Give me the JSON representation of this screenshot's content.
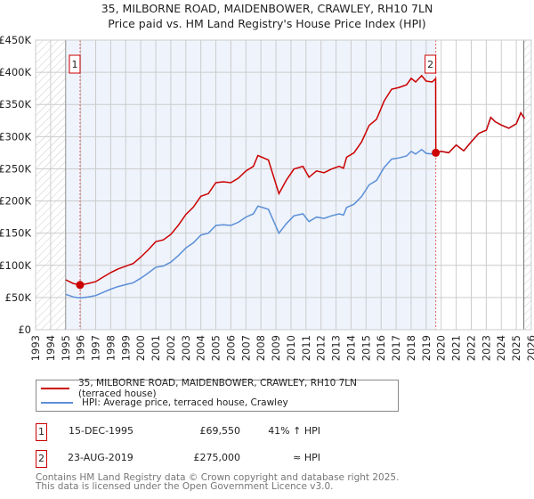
{
  "chart_data": {
    "type": "line",
    "title": "35, MILBORNE ROAD, MAIDENBOWER, CRAWLEY, RH10 7LN",
    "subtitle": "Price paid vs. HM Land Registry's House Price Index (HPI)",
    "xlim": [
      1993,
      2026
    ],
    "ylim": [
      0,
      450000
    ],
    "y_ticks": [
      0,
      50000,
      100000,
      150000,
      200000,
      250000,
      300000,
      350000,
      400000,
      450000
    ],
    "y_tick_labels": [
      "£0",
      "£50K",
      "£100K",
      "£150K",
      "£200K",
      "£250K",
      "£300K",
      "£350K",
      "£400K",
      "£450K"
    ],
    "x_ticks": [
      1993,
      1994,
      1995,
      1996,
      1997,
      1998,
      1999,
      2000,
      2001,
      2002,
      2003,
      2004,
      2005,
      2006,
      2007,
      2008,
      2009,
      2010,
      2011,
      2012,
      2013,
      2014,
      2015,
      2016,
      2017,
      2018,
      2019,
      2020,
      2021,
      2022,
      2023,
      2024,
      2025,
      2026
    ],
    "grid": true,
    "colors": {
      "property": "#cc0000",
      "hpi": "#5b8fd6",
      "shade": "#eef3fc"
    },
    "series": [
      {
        "name": "35, MILBORNE ROAD, MAIDENBOWER, CRAWLEY, RH10 7LN (terraced house)",
        "key": "property",
        "x": [
          1995.0,
          1995.5,
          1995.96,
          1996.5,
          1997.0,
          1997.5,
          1998.0,
          1998.5,
          1999.0,
          1999.5,
          2000.0,
          2000.5,
          2001.0,
          2001.5,
          2002.0,
          2002.5,
          2003.0,
          2003.5,
          2004.0,
          2004.5,
          2005.0,
          2005.5,
          2006.0,
          2006.5,
          2007.0,
          2007.5,
          2007.8,
          2008.5,
          2009.2,
          2009.7,
          2010.2,
          2010.8,
          2011.2,
          2011.7,
          2012.2,
          2012.7,
          2013.2,
          2013.5,
          2013.7,
          2014.2,
          2014.7,
          2015.2,
          2015.7,
          2016.2,
          2016.7,
          2017.2,
          2017.7,
          2018.0,
          2018.3,
          2018.7,
          2019.0,
          2019.4,
          2019.63,
          2019.64,
          2020.0,
          2020.5,
          2021.0,
          2021.5,
          2022.0,
          2022.5,
          2023.0,
          2023.3,
          2023.6,
          2024.0,
          2024.5,
          2025.0,
          2025.3,
          2025.55
        ],
        "y": [
          77600,
          71900,
          69550,
          71900,
          74700,
          81800,
          88800,
          94500,
          98700,
          102900,
          112800,
          124100,
          136800,
          139600,
          148000,
          162200,
          179100,
          190400,
          207300,
          211500,
          228400,
          229800,
          228400,
          235500,
          246800,
          253800,
          270700,
          263700,
          211500,
          232700,
          249600,
          253800,
          236900,
          246800,
          243900,
          249600,
          253800,
          251000,
          267900,
          275000,
          291900,
          317300,
          327100,
          355300,
          373700,
          376500,
          380700,
          390600,
          384900,
          394800,
          386300,
          384900,
          390000,
          275000,
          277000,
          275000,
          287000,
          278000,
          292000,
          305000,
          310000,
          330000,
          323000,
          318000,
          313000,
          320000,
          337000,
          328000
        ]
      },
      {
        "name": "HPI: Average price, terraced house, Crawley",
        "key": "hpi",
        "x": [
          1995.0,
          1995.5,
          1995.96,
          1996.5,
          1997.0,
          1997.5,
          1998.0,
          1998.5,
          1999.0,
          1999.5,
          2000.0,
          2000.5,
          2001.0,
          2001.5,
          2002.0,
          2002.5,
          2003.0,
          2003.5,
          2004.0,
          2004.5,
          2005.0,
          2005.5,
          2006.0,
          2006.5,
          2007.0,
          2007.5,
          2007.8,
          2008.5,
          2009.2,
          2009.7,
          2010.2,
          2010.8,
          2011.2,
          2011.7,
          2012.2,
          2012.7,
          2013.2,
          2013.5,
          2013.7,
          2014.2,
          2014.7,
          2015.2,
          2015.7,
          2016.2,
          2016.7,
          2017.2,
          2017.7,
          2018.0,
          2018.3,
          2018.7,
          2019.0,
          2019.4,
          2019.64,
          2020.0,
          2020.5,
          2021.0,
          2021.5,
          2022.0,
          2022.5,
          2023.0,
          2023.3,
          2023.6,
          2024.0,
          2024.5,
          2025.0,
          2025.3,
          2025.55
        ],
        "y": [
          55000,
          51000,
          49300,
          51000,
          53000,
          58000,
          63000,
          67000,
          70000,
          73000,
          80000,
          88000,
          97000,
          99000,
          105000,
          115000,
          127000,
          135000,
          147000,
          150000,
          162000,
          163000,
          162000,
          167000,
          175000,
          180000,
          192000,
          187000,
          150000,
          165000,
          177000,
          180000,
          168000,
          175000,
          173000,
          177000,
          180000,
          178000,
          190000,
          195000,
          207000,
          225000,
          232000,
          252000,
          265000,
          267000,
          270000,
          277000,
          273000,
          280000,
          274000,
          273000,
          275000,
          277000,
          275000,
          287000,
          278000,
          292000,
          305000,
          310000,
          330000,
          323000,
          318000,
          313000,
          320000,
          337000,
          328000
        ]
      }
    ],
    "sales": [
      {
        "label": "1",
        "x": 1995.96,
        "y": 69550,
        "date": "15-DEC-1995",
        "price": "£69,550",
        "hpi_note": "41% ↑ HPI"
      },
      {
        "label": "2",
        "x": 2019.64,
        "y": 275000,
        "date": "23-AUG-2019",
        "price": "£275,000",
        "hpi_note": "≈ HPI"
      }
    ],
    "shaded_range": [
      1995,
      2019.64
    ],
    "hatched_before": 1995,
    "hatched_after": 2025.5,
    "legend_position": "below"
  },
  "footer": {
    "line1": "Contains HM Land Registry data © Crown copyright and database right 2025.",
    "line2": "This data is licensed under the Open Government Licence v3.0."
  }
}
